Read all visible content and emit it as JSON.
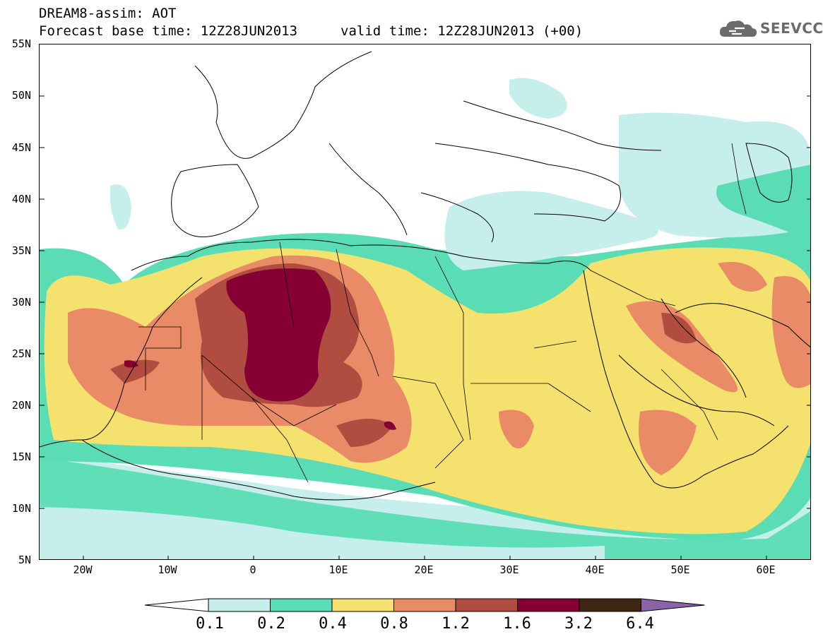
{
  "header": {
    "line1": "DREAM8-assim: AOT",
    "base_time": "Forecast base time: 12Z28JUN2013",
    "valid_time": "valid time: 12Z28JUN2013 (+00)"
  },
  "logo": {
    "text": "SEEVCCC",
    "icon": "cloud-icon"
  },
  "axes": {
    "lat_labels": [
      "55N",
      "50N",
      "45N",
      "40N",
      "35N",
      "30N",
      "25N",
      "20N",
      "15N",
      "10N",
      "5N"
    ],
    "lon_labels": [
      "20W",
      "10W",
      "0",
      "10E",
      "20E",
      "30E",
      "40E",
      "50E",
      "60E"
    ]
  },
  "legend": {
    "labels": [
      "0.1",
      "0.2",
      "0.4",
      "0.8",
      "1.2",
      "1.6",
      "3.2",
      "6.4"
    ],
    "colors": [
      "#ffffff",
      "#c6eeea",
      "#5adcb5",
      "#f5e16e",
      "#e88b66",
      "#b04d40",
      "#860033",
      "#3f2612",
      "#8a63a8"
    ]
  }
}
